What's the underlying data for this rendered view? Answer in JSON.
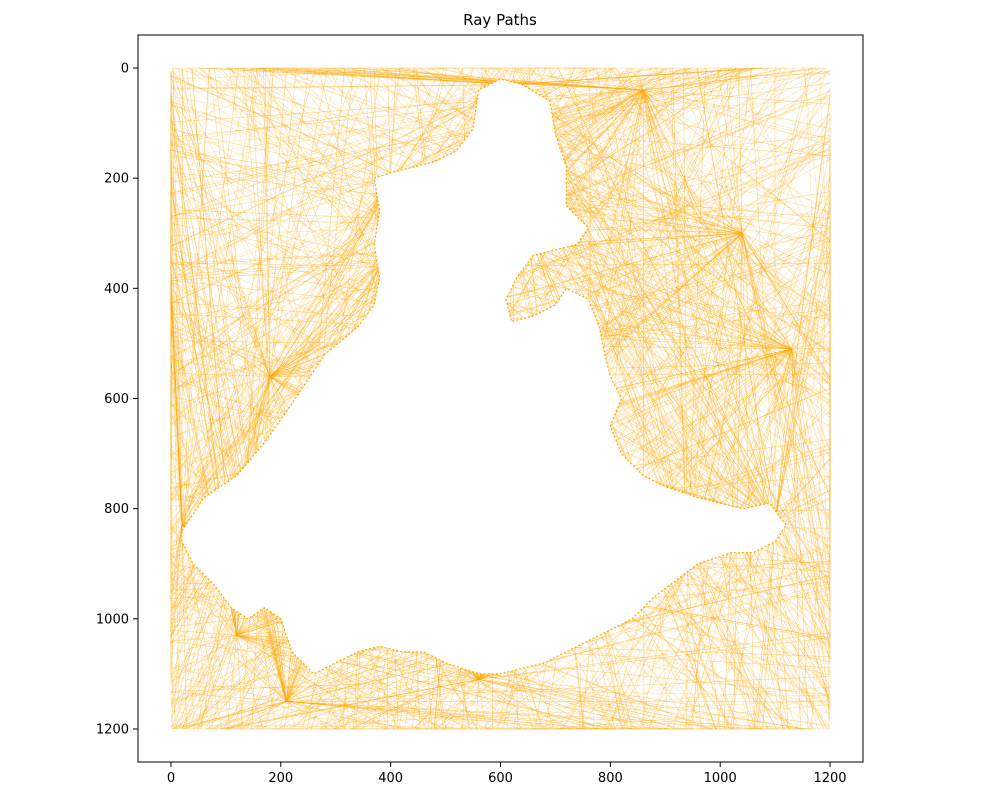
{
  "chart_data": {
    "type": "line",
    "title": "Ray Paths",
    "xlabel": "",
    "ylabel": "",
    "xlim": [
      -60,
      1260
    ],
    "ylim": [
      1260,
      -60
    ],
    "y_inverted": true,
    "x_ticks": [
      0,
      200,
      400,
      600,
      800,
      1000,
      1200
    ],
    "y_ticks": [
      0,
      200,
      400,
      600,
      800,
      1000,
      1200
    ],
    "grid": false,
    "ray_color": "#ffa500",
    "series": [
      {
        "description": "light-refraction ray segments forming a dense web",
        "hubs": [
          {
            "x": 580,
            "y": 110
          },
          {
            "x": 620,
            "y": 30
          },
          {
            "x": 860,
            "y": 40
          },
          {
            "x": 1040,
            "y": 300
          },
          {
            "x": 1130,
            "y": 510
          },
          {
            "x": 1100,
            "y": 820
          },
          {
            "x": 940,
            "y": 910
          },
          {
            "x": 560,
            "y": 1110
          },
          {
            "x": 210,
            "y": 1150
          },
          {
            "x": 120,
            "y": 1030
          },
          {
            "x": 20,
            "y": 830
          },
          {
            "x": 180,
            "y": 560
          },
          {
            "x": 380,
            "y": 360
          },
          {
            "x": 400,
            "y": 200
          }
        ]
      }
    ],
    "boundary": [
      [
        0,
        0
      ],
      [
        1200,
        0
      ],
      [
        1200,
        1200
      ],
      [
        0,
        1200
      ]
    ],
    "void_region": [
      [
        20,
        840
      ],
      [
        60,
        780
      ],
      [
        120,
        740
      ],
      [
        170,
        680
      ],
      [
        220,
        610
      ],
      [
        280,
        520
      ],
      [
        340,
        470
      ],
      [
        370,
        430
      ],
      [
        380,
        380
      ],
      [
        370,
        320
      ],
      [
        380,
        260
      ],
      [
        370,
        200
      ],
      [
        400,
        190
      ],
      [
        440,
        180
      ],
      [
        480,
        170
      ],
      [
        520,
        150
      ],
      [
        550,
        110
      ],
      [
        560,
        40
      ],
      [
        600,
        20
      ],
      [
        640,
        30
      ],
      [
        690,
        60
      ],
      [
        700,
        120
      ],
      [
        720,
        180
      ],
      [
        720,
        250
      ],
      [
        760,
        290
      ],
      [
        740,
        320
      ],
      [
        700,
        330
      ],
      [
        660,
        340
      ],
      [
        630,
        380
      ],
      [
        610,
        420
      ],
      [
        620,
        460
      ],
      [
        660,
        450
      ],
      [
        700,
        430
      ],
      [
        720,
        400
      ],
      [
        760,
        420
      ],
      [
        780,
        470
      ],
      [
        790,
        520
      ],
      [
        800,
        560
      ],
      [
        820,
        600
      ],
      [
        800,
        650
      ],
      [
        820,
        700
      ],
      [
        860,
        740
      ],
      [
        900,
        760
      ],
      [
        960,
        780
      ],
      [
        1040,
        800
      ],
      [
        1090,
        790
      ],
      [
        1120,
        830
      ],
      [
        1100,
        860
      ],
      [
        1060,
        880
      ],
      [
        1020,
        880
      ],
      [
        960,
        900
      ],
      [
        920,
        930
      ],
      [
        880,
        960
      ],
      [
        840,
        1000
      ],
      [
        800,
        1020
      ],
      [
        760,
        1040
      ],
      [
        720,
        1060
      ],
      [
        680,
        1080
      ],
      [
        640,
        1090
      ],
      [
        600,
        1100
      ],
      [
        560,
        1100
      ],
      [
        500,
        1080
      ],
      [
        460,
        1060
      ],
      [
        420,
        1060
      ],
      [
        380,
        1050
      ],
      [
        340,
        1060
      ],
      [
        300,
        1080
      ],
      [
        260,
        1100
      ],
      [
        220,
        1060
      ],
      [
        200,
        1000
      ],
      [
        170,
        980
      ],
      [
        140,
        1000
      ],
      [
        110,
        980
      ],
      [
        80,
        940
      ],
      [
        40,
        900
      ],
      [
        20,
        860
      ]
    ]
  }
}
